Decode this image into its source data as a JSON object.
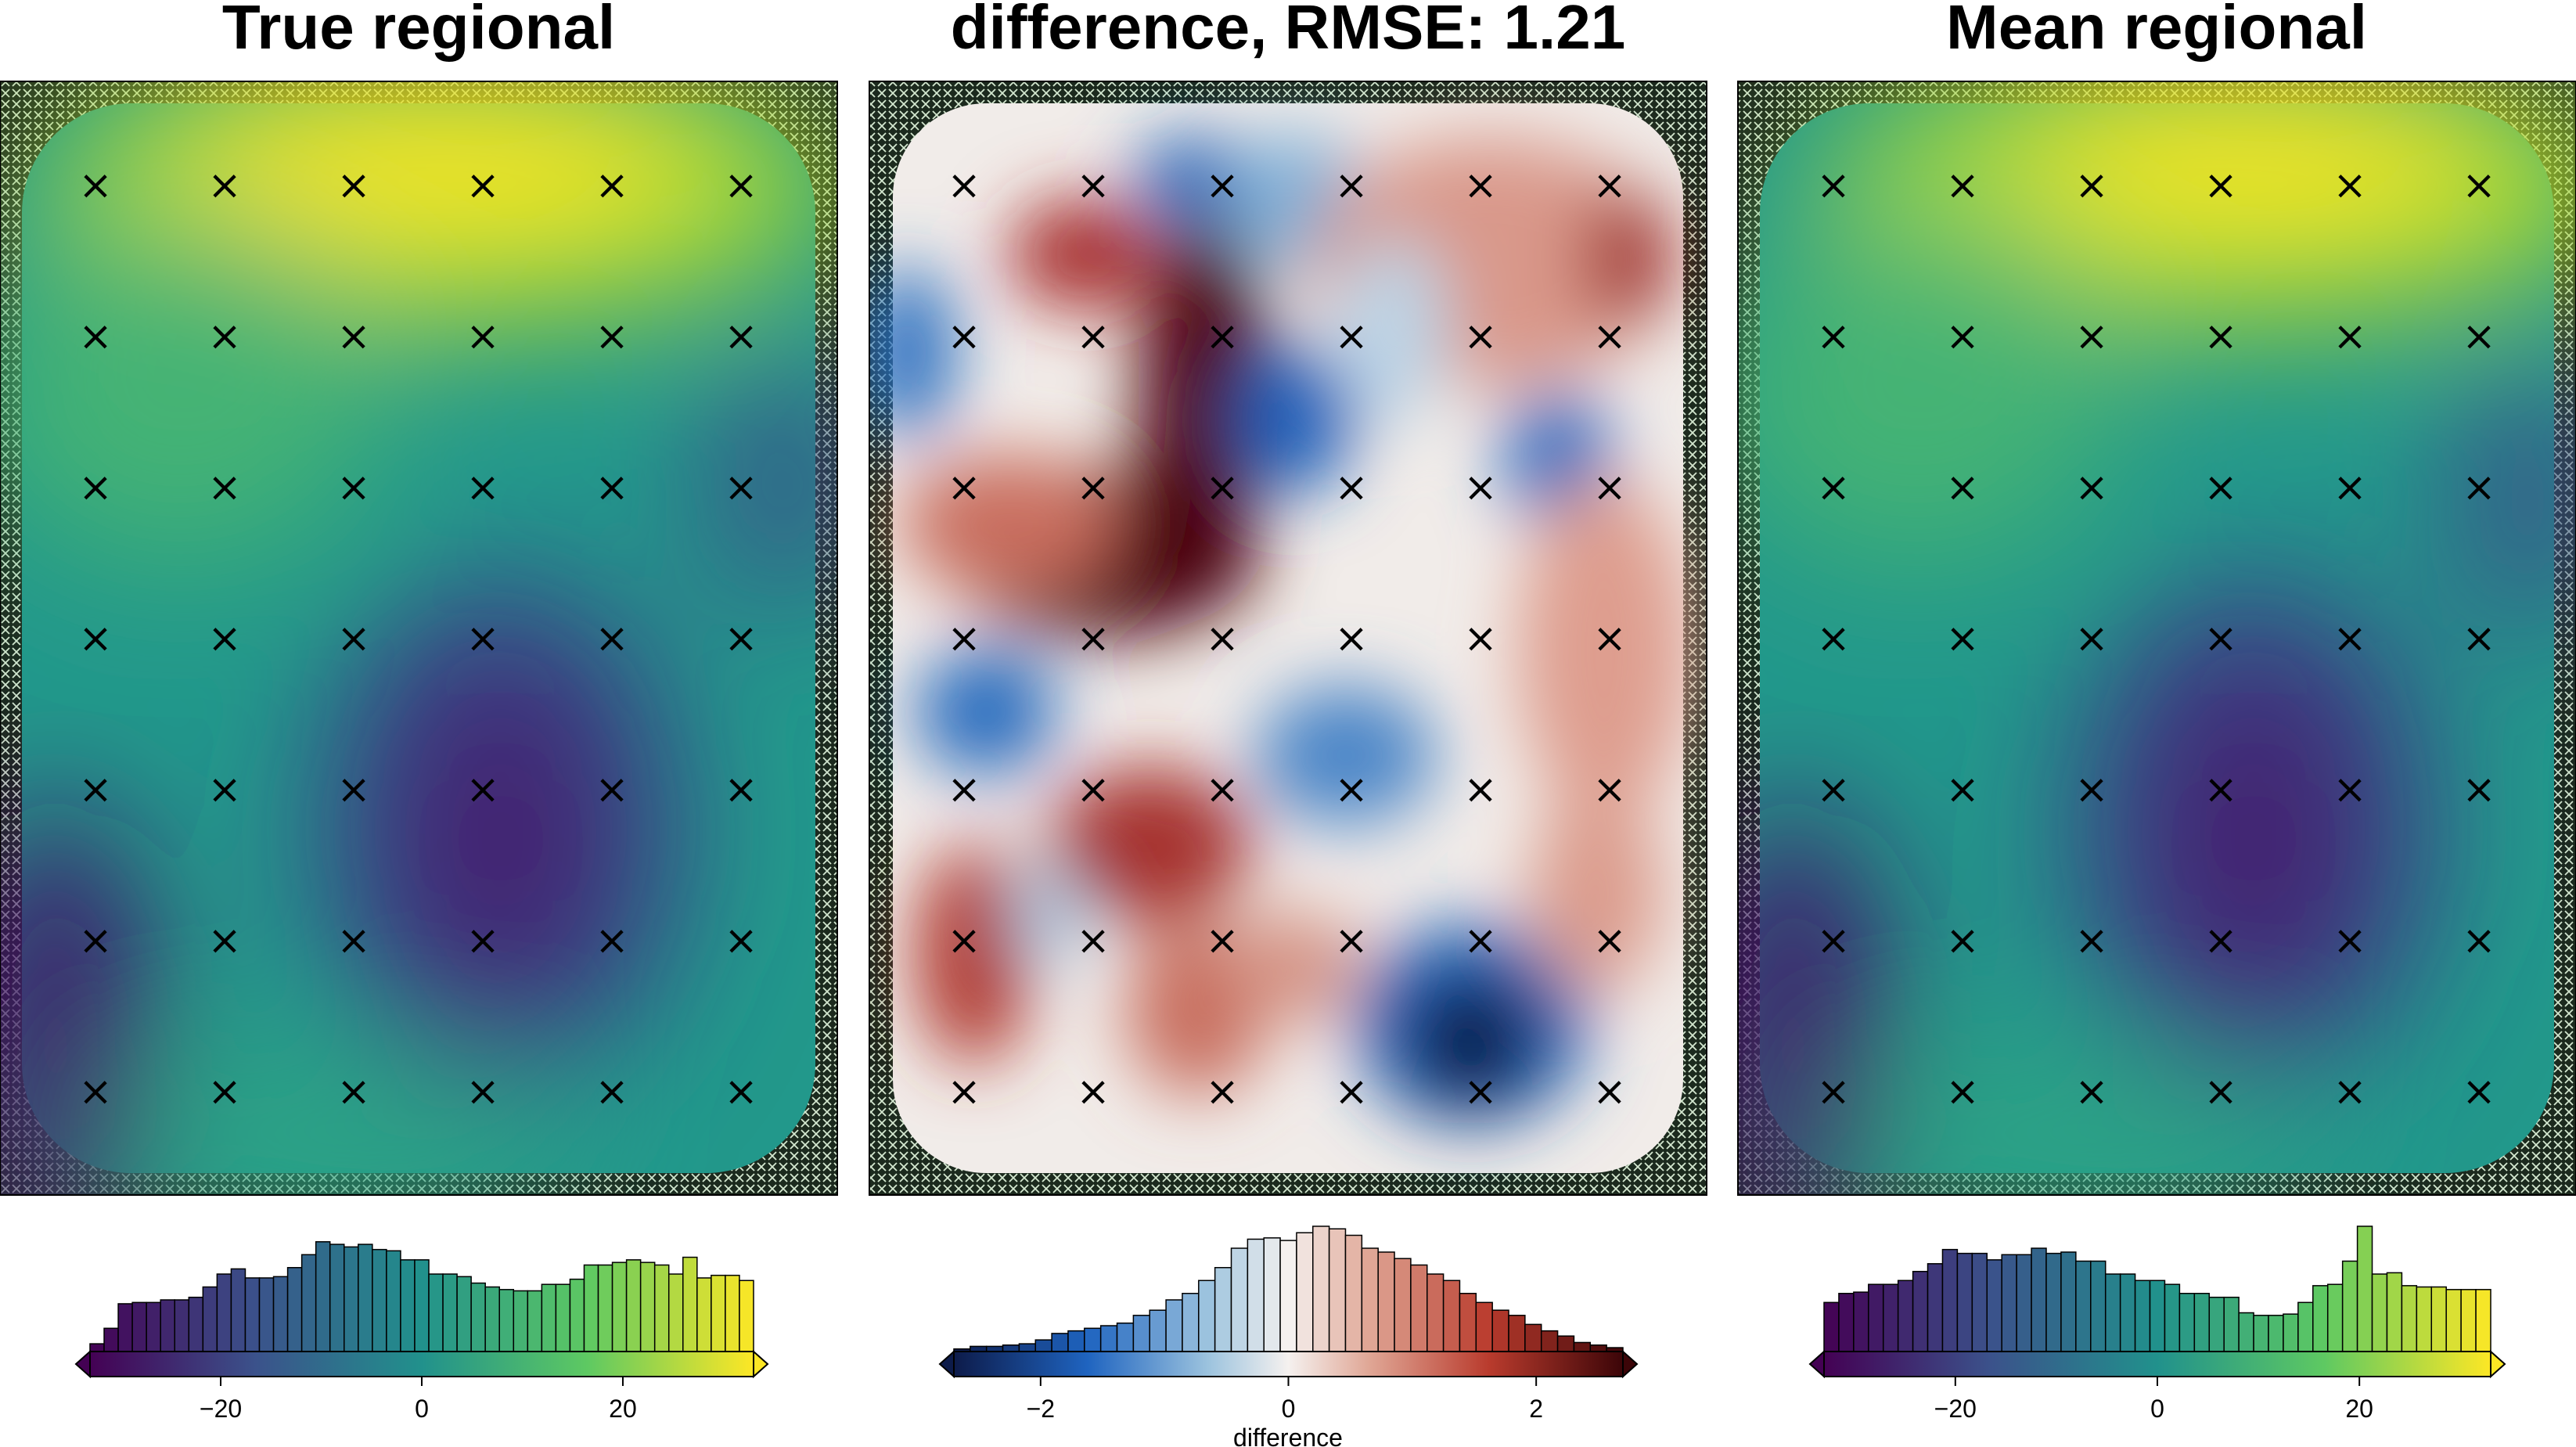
{
  "chart_data": [
    {
      "type": "heatmap",
      "title": "True regional",
      "colormap": "viridis",
      "vmin": -33,
      "vmax": 33,
      "colorbar": {
        "ticks": [
          -20,
          0,
          20
        ],
        "tick_labels": [
          "−20",
          "0",
          "20"
        ],
        "label": "",
        "histogram": [
          0.06,
          0.18,
          0.37,
          0.38,
          0.38,
          0.4,
          0.4,
          0.42,
          0.5,
          0.6,
          0.64,
          0.57,
          0.57,
          0.58,
          0.65,
          0.75,
          0.85,
          0.83,
          0.81,
          0.83,
          0.79,
          0.78,
          0.71,
          0.71,
          0.6,
          0.6,
          0.58,
          0.53,
          0.5,
          0.48,
          0.47,
          0.47,
          0.52,
          0.52,
          0.56,
          0.67,
          0.67,
          0.69,
          0.71,
          0.69,
          0.67,
          0.6,
          0.73,
          0.57,
          0.59,
          0.59,
          0.55
        ]
      },
      "control_points": {
        "marker": "×",
        "cols": 6,
        "rows": 7
      }
    },
    {
      "type": "heatmap",
      "title": "difference, RMSE: 1.21",
      "colormap": "diverging red-blue",
      "vmin": -2.7,
      "vmax": 2.7,
      "colorbar": {
        "ticks": [
          -2,
          0,
          2
        ],
        "tick_labels": [
          "−2",
          "0",
          "2"
        ],
        "label": "difference",
        "histogram": [
          0.02,
          0.04,
          0.04,
          0.05,
          0.06,
          0.09,
          0.14,
          0.16,
          0.18,
          0.2,
          0.22,
          0.28,
          0.32,
          0.4,
          0.45,
          0.55,
          0.65,
          0.8,
          0.87,
          0.88,
          0.86,
          0.92,
          0.97,
          0.95,
          0.9,
          0.8,
          0.77,
          0.72,
          0.67,
          0.6,
          0.55,
          0.45,
          0.38,
          0.32,
          0.28,
          0.21,
          0.16,
          0.12,
          0.07,
          0.05,
          0.03
        ]
      },
      "control_points": {
        "marker": "×",
        "cols": 6,
        "rows": 7
      }
    },
    {
      "type": "heatmap",
      "title": "Mean regional",
      "colormap": "viridis",
      "vmin": -33,
      "vmax": 33,
      "colorbar": {
        "ticks": [
          -20,
          0,
          20
        ],
        "tick_labels": [
          "−20",
          "0",
          "20"
        ],
        "label": "",
        "histogram": [
          0.38,
          0.45,
          0.46,
          0.52,
          0.52,
          0.55,
          0.62,
          0.68,
          0.79,
          0.76,
          0.76,
          0.71,
          0.75,
          0.75,
          0.8,
          0.76,
          0.77,
          0.7,
          0.7,
          0.6,
          0.6,
          0.55,
          0.55,
          0.52,
          0.45,
          0.45,
          0.42,
          0.42,
          0.3,
          0.28,
          0.28,
          0.29,
          0.38,
          0.51,
          0.52,
          0.7,
          0.97,
          0.6,
          0.61,
          0.51,
          0.5,
          0.5,
          0.48,
          0.48,
          0.48
        ]
      },
      "control_points": {
        "marker": "×",
        "cols": 6,
        "rows": 7
      }
    }
  ]
}
